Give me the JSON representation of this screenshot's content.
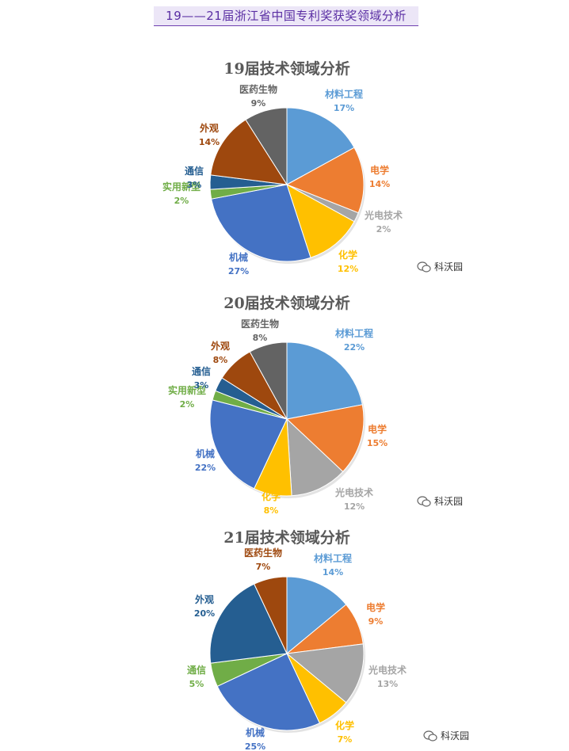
{
  "header": {
    "title": "19——21届浙江省中国专利奖获奖领域分析"
  },
  "watermark": {
    "text": "科沃园"
  },
  "chart_data": [
    {
      "type": "pie",
      "title": "19届技术领域分析",
      "slices": [
        {
          "label": "材料工程",
          "pct_text": "17%",
          "value": 17,
          "color": "#5b9bd5"
        },
        {
          "label": "电学",
          "pct_text": "14%",
          "value": 14,
          "color": "#ed7d31"
        },
        {
          "label": "光电技术",
          "pct_text": "2%",
          "value": 2,
          "color": "#a5a5a5"
        },
        {
          "label": "化学",
          "pct_text": "12%",
          "value": 12,
          "color": "#ffc000"
        },
        {
          "label": "机械",
          "pct_text": "27%",
          "value": 27,
          "color": "#4472c4"
        },
        {
          "label": "实用新型",
          "pct_text": "2%",
          "value": 2,
          "color": "#70ad47"
        },
        {
          "label": "通信",
          "pct_text": "3%",
          "value": 3,
          "color": "#255e91"
        },
        {
          "label": "外观",
          "pct_text": "14%",
          "value": 14,
          "color": "#9e480e"
        },
        {
          "label": "医药生物",
          "pct_text": "9%",
          "value": 9,
          "color": "#636363"
        }
      ]
    },
    {
      "type": "pie",
      "title": "20届技术领域分析",
      "slices": [
        {
          "label": "材料工程",
          "pct_text": "22%",
          "value": 22,
          "color": "#5b9bd5"
        },
        {
          "label": "电学",
          "pct_text": "15%",
          "value": 15,
          "color": "#ed7d31"
        },
        {
          "label": "光电技术",
          "pct_text": "12%",
          "value": 12,
          "color": "#a5a5a5"
        },
        {
          "label": "化学",
          "pct_text": "8%",
          "value": 8,
          "color": "#ffc000"
        },
        {
          "label": "机械",
          "pct_text": "22%",
          "value": 22,
          "color": "#4472c4"
        },
        {
          "label": "实用新型",
          "pct_text": "2%",
          "value": 2,
          "color": "#70ad47"
        },
        {
          "label": "通信",
          "pct_text": "3%",
          "value": 3,
          "color": "#255e91"
        },
        {
          "label": "外观",
          "pct_text": "8%",
          "value": 8,
          "color": "#9e480e"
        },
        {
          "label": "医药生物",
          "pct_text": "8%",
          "value": 8,
          "color": "#636363"
        }
      ]
    },
    {
      "type": "pie",
      "title": "21届技术领域分析",
      "slices": [
        {
          "label": "材料工程",
          "pct_text": "14%",
          "value": 14,
          "color": "#5b9bd5"
        },
        {
          "label": "电学",
          "pct_text": "9%",
          "value": 9,
          "color": "#ed7d31"
        },
        {
          "label": "光电技术",
          "pct_text": "13%",
          "value": 13,
          "color": "#a5a5a5"
        },
        {
          "label": "化学",
          "pct_text": "7%",
          "value": 7,
          "color": "#ffc000"
        },
        {
          "label": "机械",
          "pct_text": "25%",
          "value": 25,
          "color": "#4472c4"
        },
        {
          "label": "通信",
          "pct_text": "5%",
          "value": 5,
          "color": "#70ad47"
        },
        {
          "label": "外观",
          "pct_text": "20%",
          "value": 20,
          "color": "#255e91"
        },
        {
          "label": "医药生物",
          "pct_text": "7%",
          "value": 7,
          "color": "#9e480e"
        }
      ]
    }
  ]
}
